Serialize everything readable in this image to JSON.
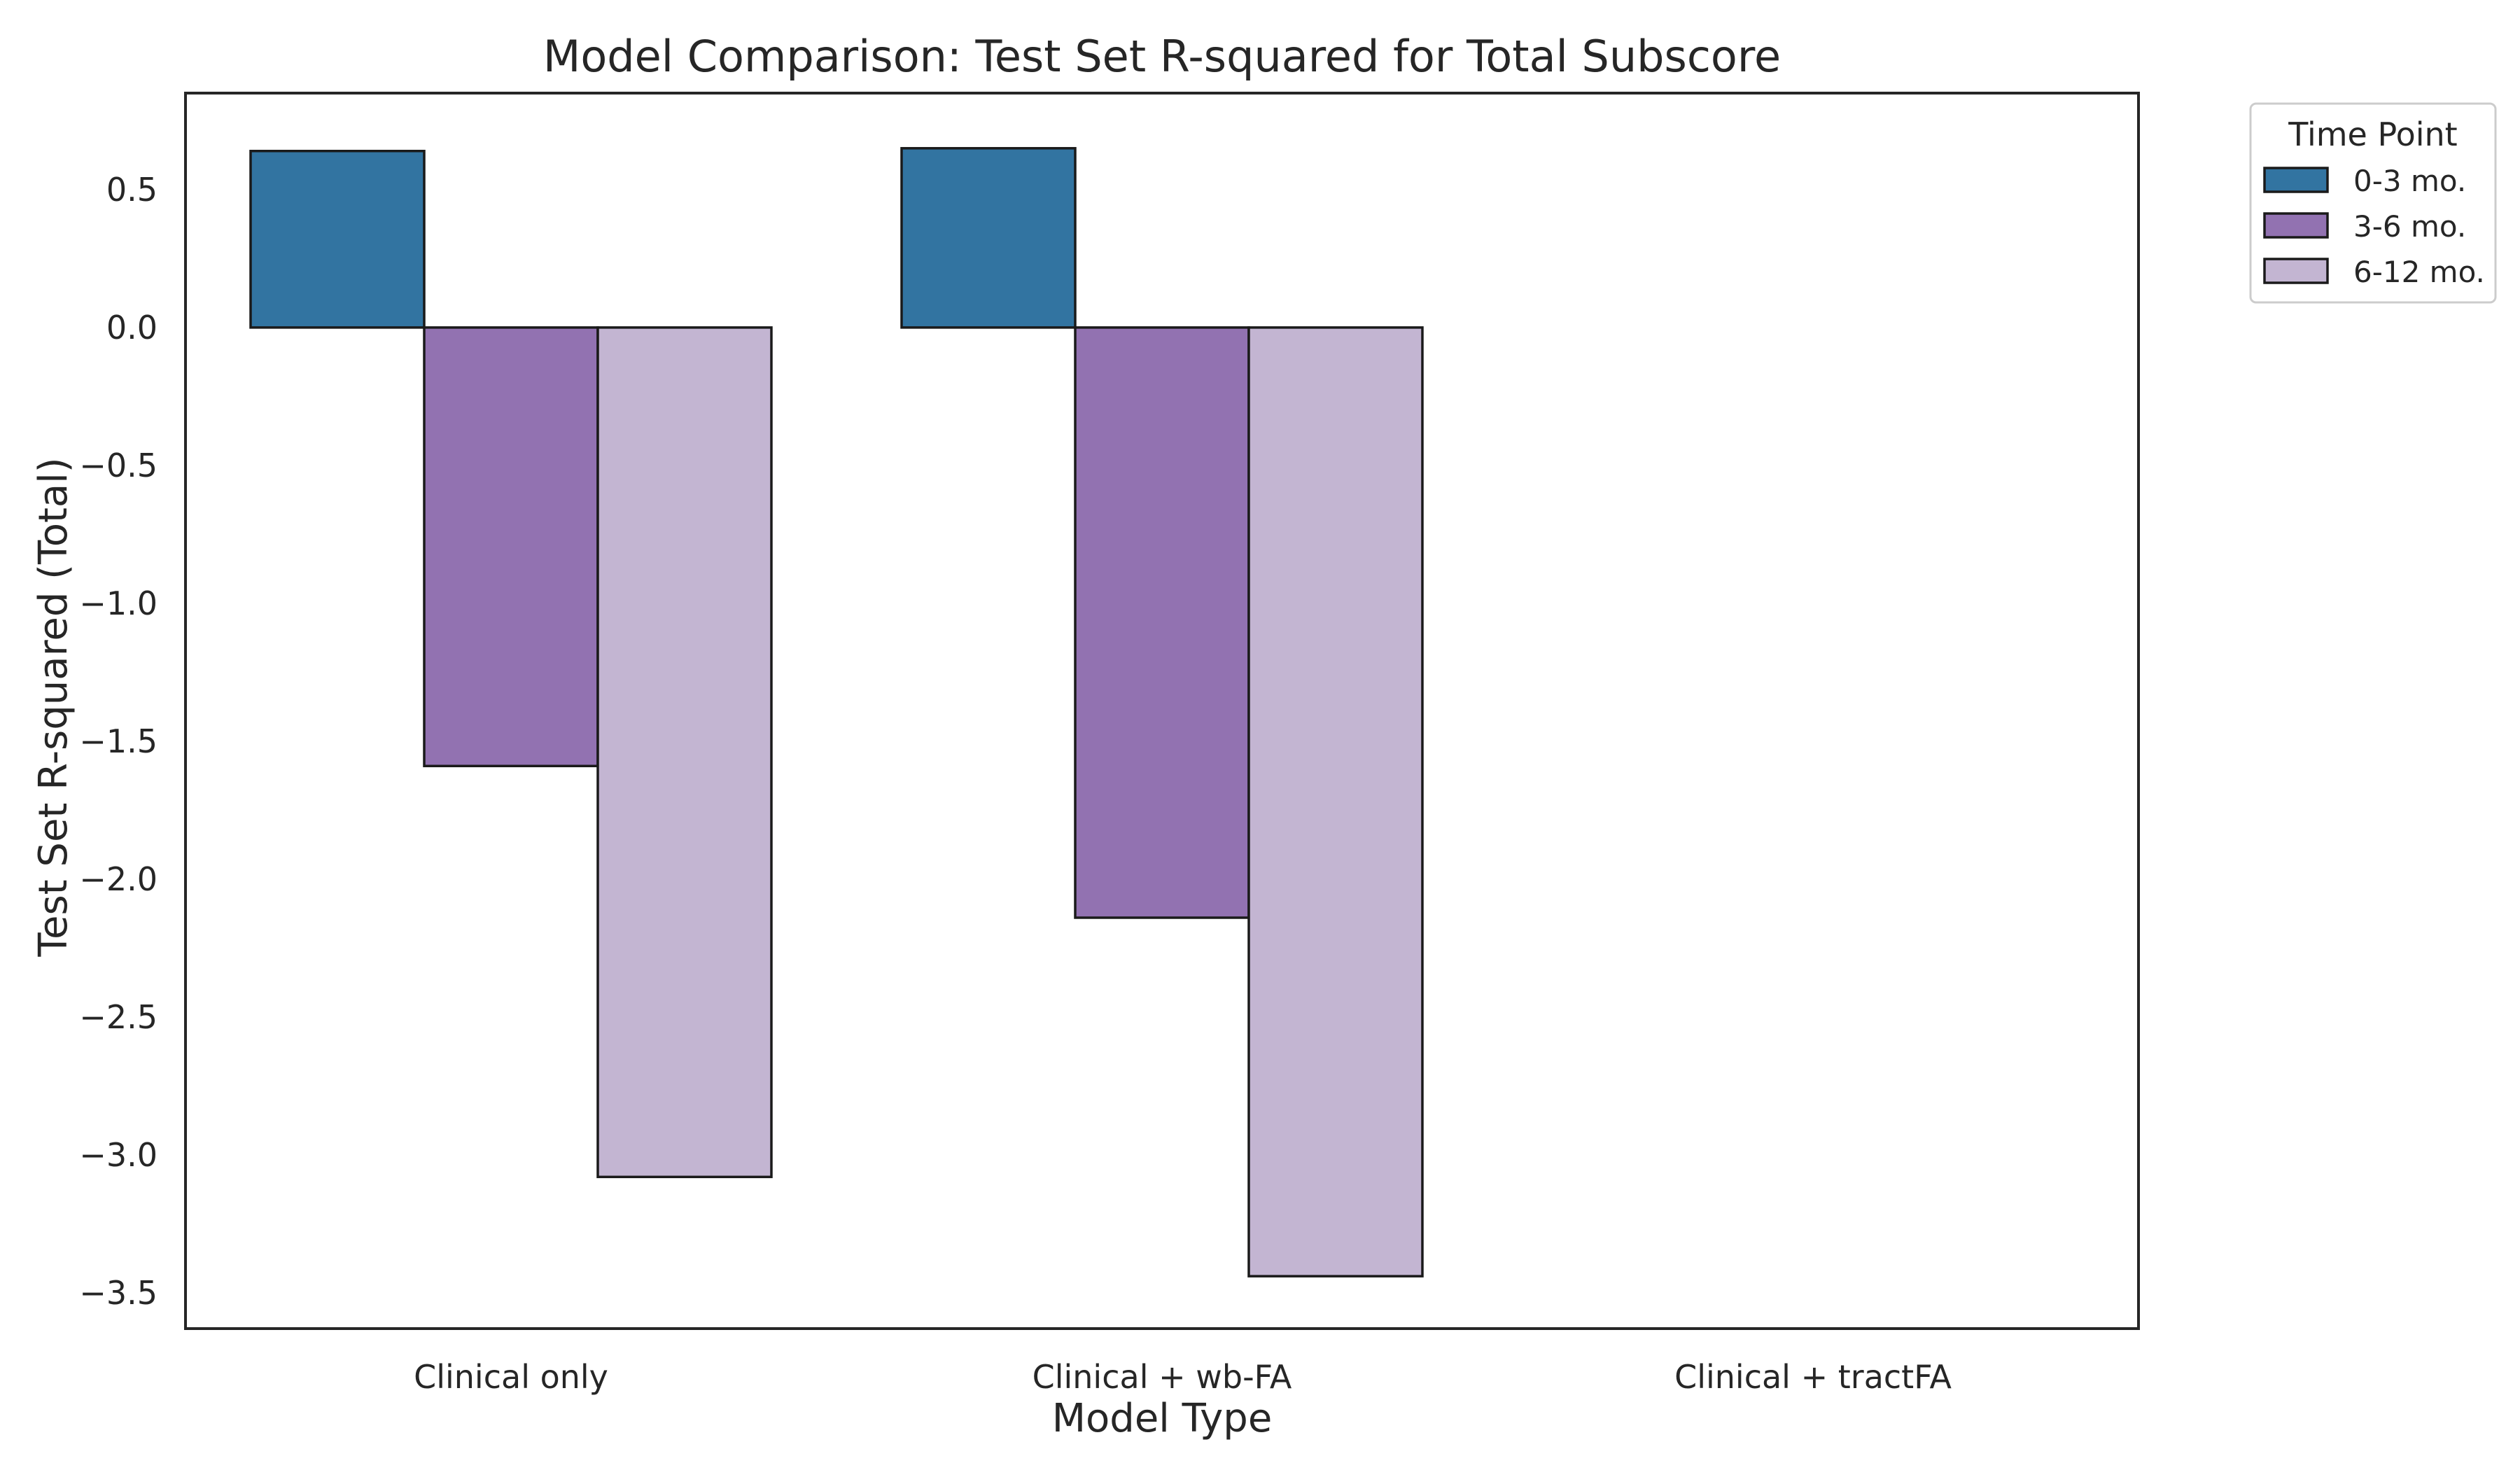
{
  "chart_data": {
    "type": "bar",
    "title": "Model Comparison: Test Set R-squared for Total Subscore",
    "xlabel": "Model Type",
    "ylabel": "Test Set R-squared (Total)",
    "categories": [
      "Clinical only",
      "Clinical + wb-FA",
      "Clinical + tractFA"
    ],
    "ylim": [
      -3.63,
      0.85
    ],
    "yticks": [
      0.5,
      0.0,
      -0.5,
      -1.0,
      -1.5,
      -2.0,
      -2.5,
      -3.0,
      -3.5
    ],
    "ytick_labels": [
      "0.5",
      "0.0",
      "−0.5",
      "−1.0",
      "−1.5",
      "−2.0",
      "−2.5",
      "−3.0",
      "−3.5"
    ],
    "grid": false,
    "legend": {
      "title": "Time Point",
      "placement": "outside-top-right"
    },
    "series": [
      {
        "name": "0-3 mo.",
        "color": "#3274a1",
        "values": [
          0.64,
          0.65,
          null
        ]
      },
      {
        "name": "3-6 mo.",
        "color": "#9272b1",
        "values": [
          -1.59,
          -2.14,
          null
        ]
      },
      {
        "name": "6-12 mo.",
        "color": "#c3b5d2",
        "values": [
          -3.08,
          -3.44,
          null
        ]
      }
    ]
  }
}
